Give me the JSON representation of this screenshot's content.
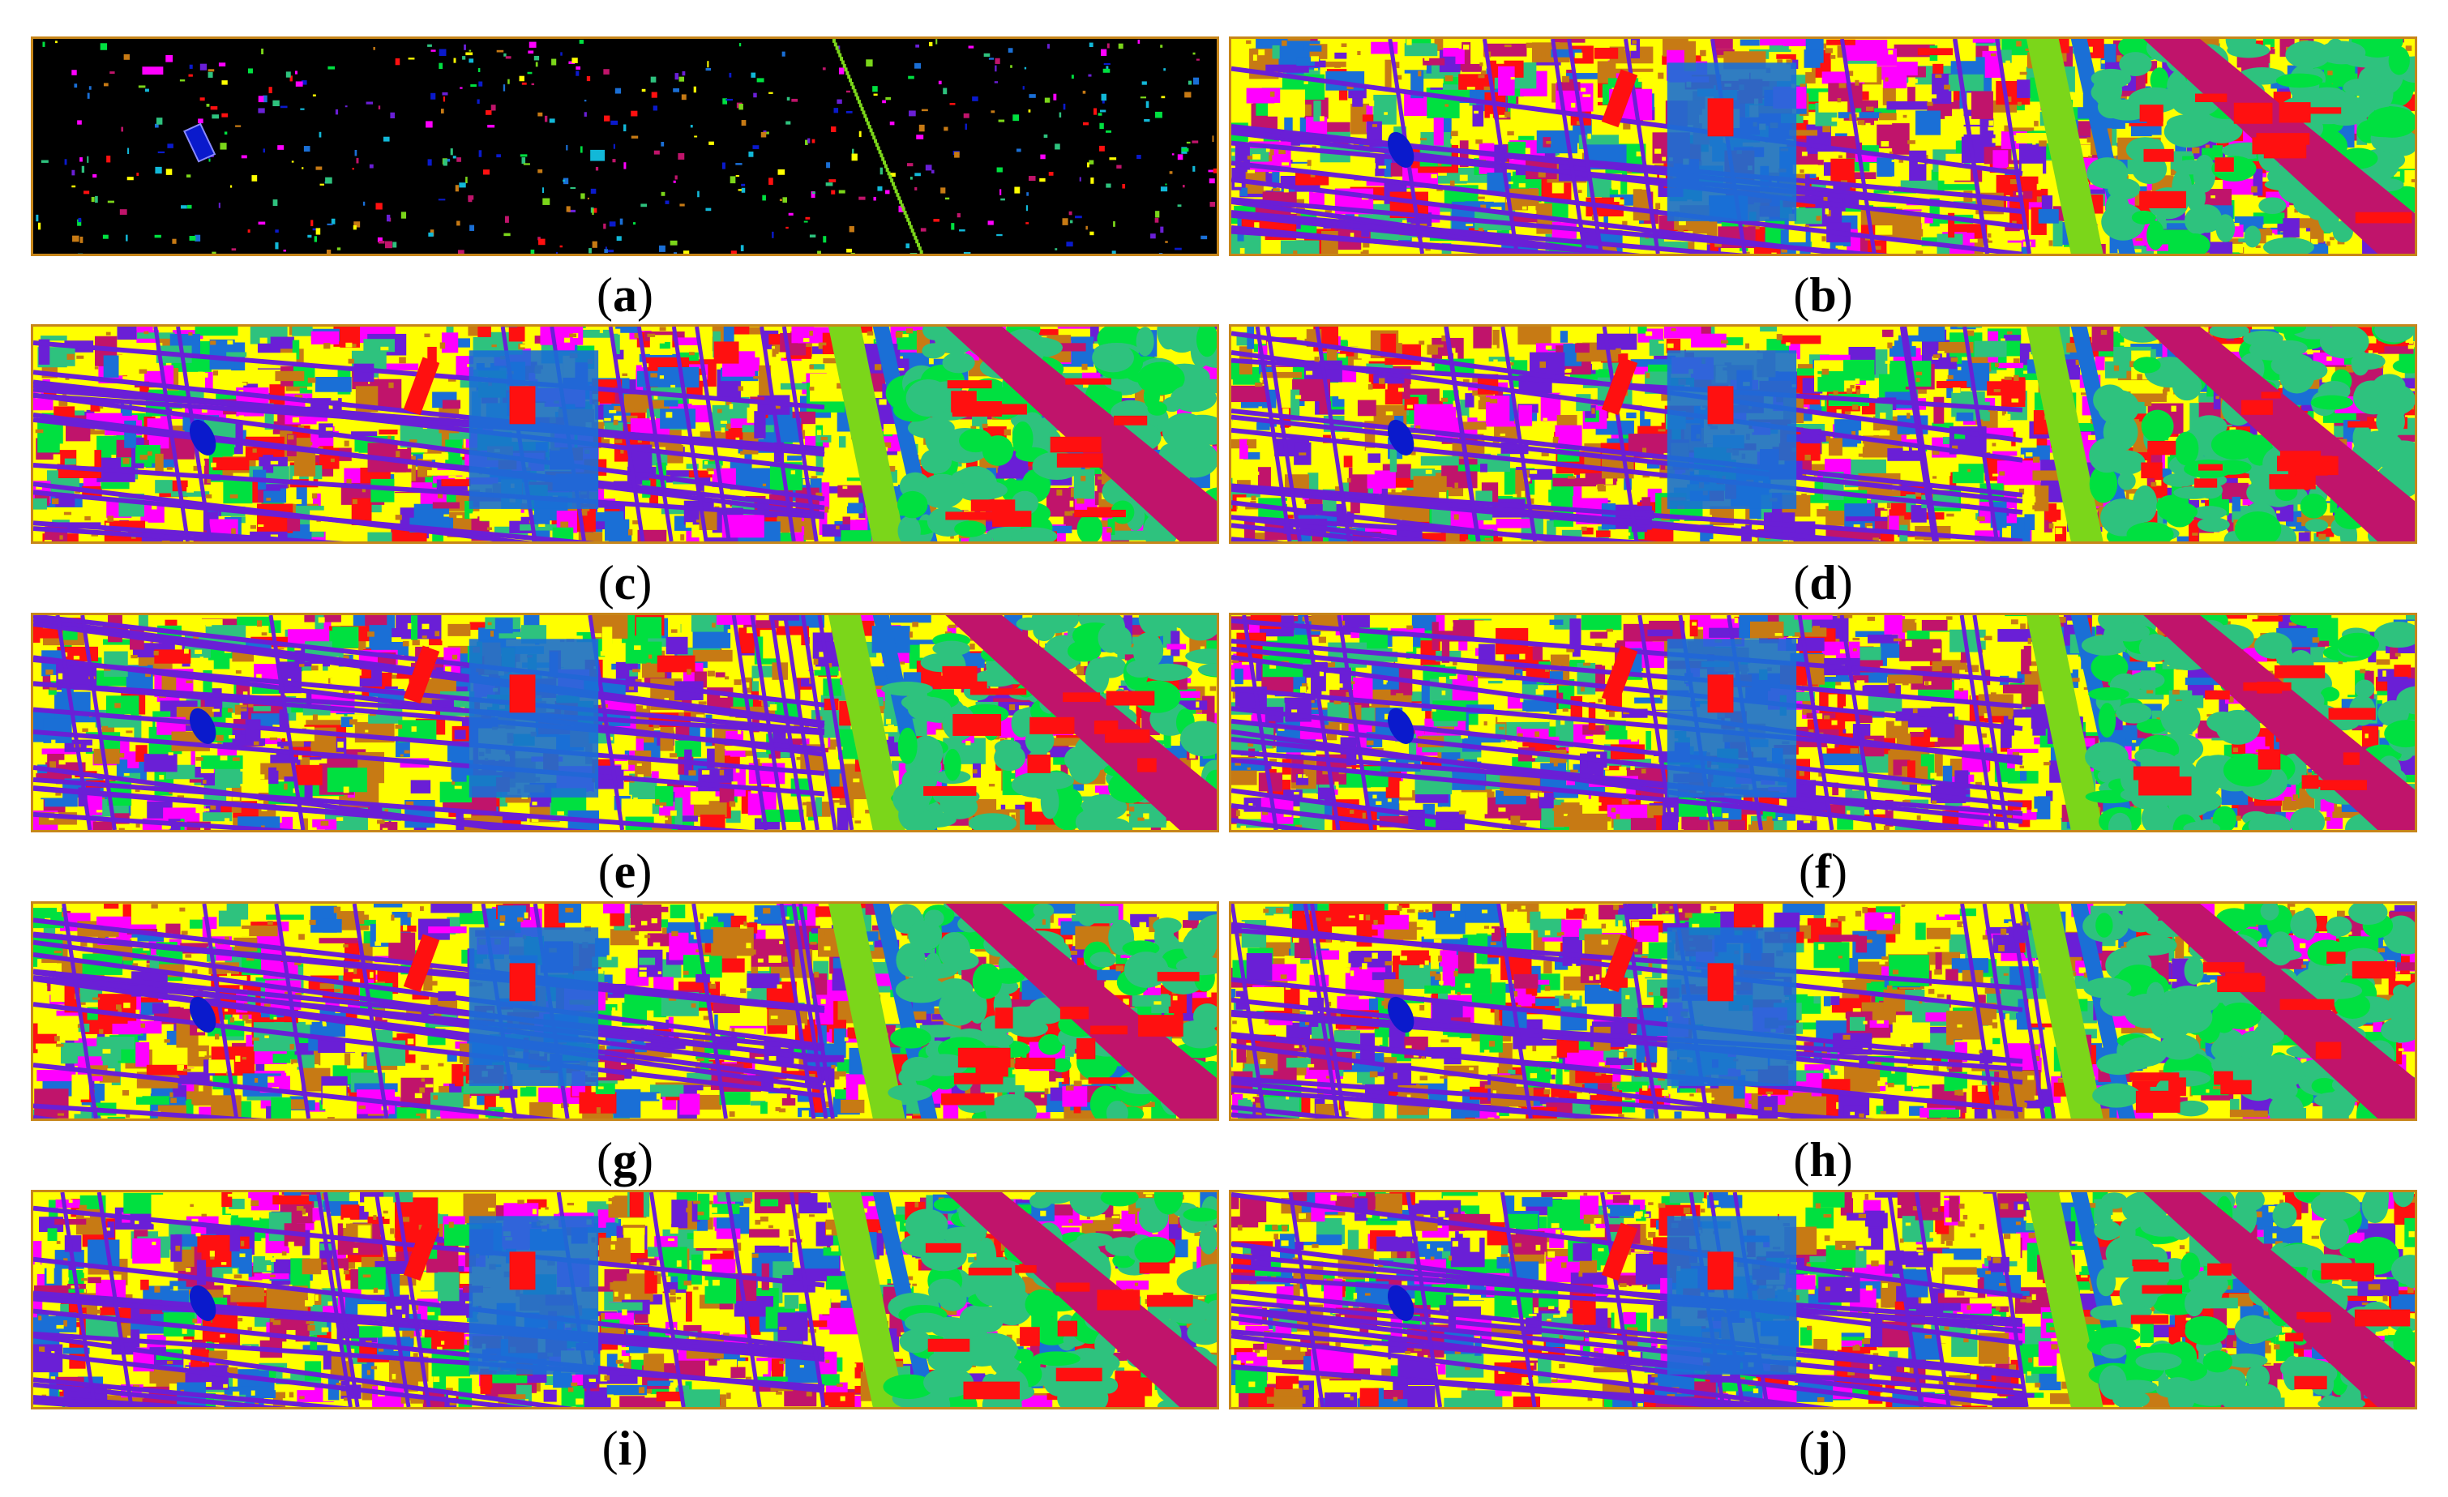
{
  "figure": {
    "palette": {
      "background_gt": "#000000",
      "frame": "#c7861a",
      "classes": [
        "#ffff00",
        "#00e040",
        "#1a6fd6",
        "#ff00ff",
        "#ff1010",
        "#2ec27e",
        "#6a1fd6",
        "#c0146b",
        "#c77a14",
        "#12b8d8",
        "#7bd61a",
        "#0a1acc"
      ]
    },
    "panels": [
      {
        "id": "a",
        "label": "a",
        "map": "ground-truth"
      },
      {
        "id": "b",
        "label": "b",
        "map": "classification"
      },
      {
        "id": "c",
        "label": "c",
        "map": "classification"
      },
      {
        "id": "d",
        "label": "d",
        "map": "classification"
      },
      {
        "id": "e",
        "label": "e",
        "map": "classification"
      },
      {
        "id": "f",
        "label": "f",
        "map": "classification"
      },
      {
        "id": "g",
        "label": "g",
        "map": "classification"
      },
      {
        "id": "h",
        "label": "h",
        "map": "classification"
      },
      {
        "id": "i",
        "label": "i",
        "map": "classification"
      },
      {
        "id": "j",
        "label": "j",
        "map": "classification"
      }
    ]
  }
}
